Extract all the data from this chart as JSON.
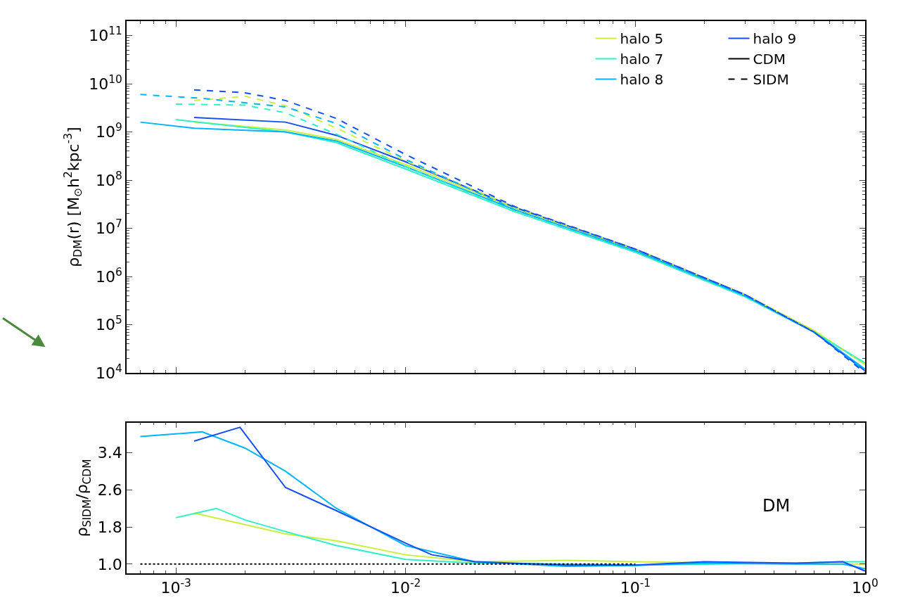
{
  "chart_data": [
    {
      "type": "line",
      "ylabel": "ρ$_{DM}$(r) [M$_{⊙}$h$^{2}$kpc$^{-3}$]",
      "log": "xy",
      "legend": "top right",
      "tick_labels": "y",
      "xlim": [
        0.00061,
        1
      ],
      "xticks": [
        {
          "value": 0.001,
          "label": null
        },
        {
          "value": 0.01,
          "label": null
        },
        {
          "value": 0.1,
          "label": null
        },
        {
          "value": 1,
          "label": null
        }
      ],
      "ylim": [
        10000,
        200000000000
      ],
      "yticks": [
        {
          "value": 10000,
          "label": "10$^{4}$"
        },
        {
          "value": 100000,
          "label": "10$^{5}$"
        },
        {
          "value": 1000000,
          "label": "10$^{6}$"
        },
        {
          "value": 10000000,
          "label": "10$^{7}$"
        },
        {
          "value": 100000000,
          "label": "10$^{8}$"
        },
        {
          "value": 1000000000,
          "label": "10$^{9}$"
        },
        {
          "value": 10000000000,
          "label": "10$^{10}$"
        },
        {
          "value": 100000000000,
          "label": "10$^{11}$"
        }
      ],
      "series": [
        {
          "name": "halo 5",
          "color": "#c8f03c",
          "line_style": "solid",
          "x": [
            0.0012,
            0.003,
            0.005,
            0.01,
            0.03,
            0.1,
            0.3,
            0.6,
            1
          ],
          "values": [
            1600000000,
            1100000000,
            700000000,
            210000000,
            26000000,
            3600000,
            420000,
            75000,
            15000
          ]
        },
        {
          "name": "halo 7",
          "color": "#30f0c8",
          "line_style": "solid",
          "x": [
            0.001,
            0.003,
            0.005,
            0.01,
            0.03,
            0.1,
            0.3,
            0.6,
            1
          ],
          "values": [
            1800000000,
            1000000000,
            600000000,
            170000000,
            22000000,
            3200000,
            380000,
            70000,
            16000
          ]
        },
        {
          "name": "halo 8",
          "color": "#00b4ff",
          "line_style": "solid",
          "x": [
            0.0007,
            0.0012,
            0.003,
            0.005,
            0.01,
            0.03,
            0.1,
            0.3,
            0.6,
            1
          ],
          "values": [
            1600000000,
            1200000000,
            1000000000,
            650000000,
            190000000,
            24000000,
            3400000,
            400000,
            70000,
            12000
          ]
        },
        {
          "name": "halo 9",
          "color": "#1450f0",
          "line_style": "solid",
          "x": [
            0.0012,
            0.003,
            0.005,
            0.01,
            0.03,
            0.1,
            0.3,
            0.6,
            1
          ],
          "values": [
            2000000000,
            1600000000,
            850000000,
            240000000,
            27000000,
            3700000,
            420000,
            70000,
            11000
          ]
        },
        {
          "color": "#c8f03c",
          "line_style": "dashed",
          "x": [
            0.0012,
            0.002,
            0.003,
            0.005,
            0.01,
            0.03,
            0.1,
            0.3,
            0.6,
            1
          ],
          "values": [
            4500000000,
            5500000000,
            3500000000,
            1200000000,
            250000000,
            27000000,
            3700000,
            420000,
            75000,
            15000
          ]
        },
        {
          "color": "#30f0c8",
          "line_style": "dashed",
          "x": [
            0.001,
            0.002,
            0.003,
            0.005,
            0.01,
            0.03,
            0.1,
            0.3,
            0.6,
            1
          ],
          "values": [
            3800000000,
            3600000000,
            2500000000,
            900000000,
            190000000,
            22000000,
            3200000,
            380000,
            70000,
            16000
          ]
        },
        {
          "color": "#00b4ff",
          "line_style": "dashed",
          "x": [
            0.0007,
            0.0013,
            0.003,
            0.005,
            0.01,
            0.03,
            0.1,
            0.3,
            0.6,
            1
          ],
          "values": [
            6000000000,
            5000000000,
            3300000000,
            1500000000,
            270000000,
            24000000,
            3400000,
            400000,
            70000,
            11000
          ]
        },
        {
          "color": "#1450f0",
          "line_style": "dashed",
          "x": [
            0.0012,
            0.002,
            0.003,
            0.005,
            0.01,
            0.03,
            0.1,
            0.3,
            0.6,
            1
          ],
          "values": [
            7500000000,
            6500000000,
            4500000000,
            1900000000,
            340000000,
            28000000,
            3700000,
            420000,
            70000,
            10000
          ]
        },
        {
          "name": "CDM",
          "color": "#000000",
          "line_style": "solid"
        },
        {
          "name": "SIDM",
          "color": "#000000",
          "line_style": "dashed"
        }
      ]
    },
    {
      "type": "line",
      "ylabel": "ρ$_{SIDM}$/ρ$_{CDM}$",
      "log": "x",
      "annotations": [
        "DM"
      ],
      "xlim": [
        0.00061,
        1
      ],
      "xticks": [
        {
          "value": 0.001,
          "label": "10$^{-3}$"
        },
        {
          "value": 0.01,
          "label": "10$^{-2}$"
        },
        {
          "value": 0.1,
          "label": "10$^{-1}$"
        },
        {
          "value": 1,
          "label": "10$^{0}$"
        }
      ],
      "ylim": [
        0.8,
        4.05
      ],
      "yticks": [
        {
          "value": 1.0,
          "label": "1.0"
        },
        {
          "value": 1.8,
          "label": "1.8"
        },
        {
          "value": 2.6,
          "label": "2.6"
        },
        {
          "value": 3.4,
          "label": "3.4"
        }
      ],
      "series": [
        {
          "color": "#c8f03c",
          "line_style": "solid",
          "x": [
            0.0012,
            0.002,
            0.003,
            0.005,
            0.01,
            0.02,
            0.05,
            0.1,
            0.5,
            1
          ],
          "values": [
            2.1,
            1.85,
            1.65,
            1.5,
            1.2,
            1.05,
            1.08,
            1.05,
            1.0,
            1.0
          ]
        },
        {
          "color": "#30f0c8",
          "line_style": "solid",
          "x": [
            0.001,
            0.0015,
            0.002,
            0.003,
            0.005,
            0.01,
            0.02,
            0.05,
            0.1,
            0.5,
            0.8,
            1
          ],
          "values": [
            2.0,
            2.2,
            1.95,
            1.7,
            1.4,
            1.1,
            1.02,
            1.0,
            0.98,
            1.02,
            1.05,
            1.05
          ]
        },
        {
          "color": "#00b4ff",
          "line_style": "solid",
          "x": [
            0.0007,
            0.0013,
            0.002,
            0.003,
            0.005,
            0.01,
            0.02,
            0.05,
            0.1,
            0.2,
            0.5,
            0.8,
            1
          ],
          "values": [
            3.75,
            3.85,
            3.5,
            3.0,
            2.2,
            1.4,
            1.05,
            0.95,
            0.97,
            1.02,
            1.0,
            1.0,
            0.9
          ]
        },
        {
          "color": "#1450f0",
          "line_style": "solid",
          "x": [
            0.0012,
            0.0019,
            0.003,
            0.005,
            0.01,
            0.013,
            0.02,
            0.05,
            0.1,
            0.2,
            0.5,
            0.8,
            1
          ],
          "values": [
            3.65,
            3.95,
            2.65,
            2.15,
            1.45,
            1.2,
            1.05,
            0.98,
            0.98,
            1.05,
            1.02,
            1.05,
            0.85
          ]
        },
        {
          "color": "#000000",
          "line_style": "dotted",
          "x": [
            0.0007,
            0.1
          ],
          "values": [
            1,
            1
          ]
        }
      ]
    }
  ]
}
